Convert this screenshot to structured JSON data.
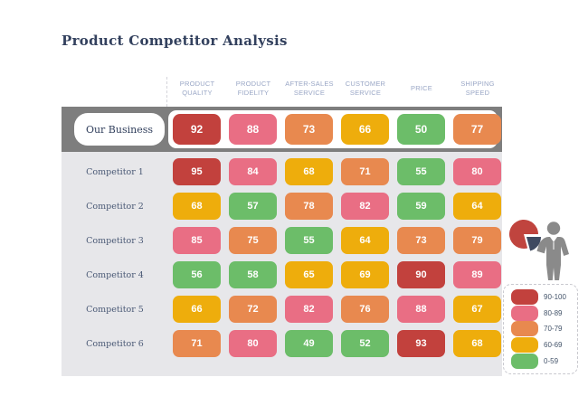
{
  "title": "Product Competitor Analysis",
  "our_business_label": "Our Business",
  "chart_data": {
    "type": "heatmap",
    "title": "Product Competitor Analysis",
    "categories": [
      "PRODUCT QUALITY",
      "PRODUCT FIDELITY",
      "AFTER-SALES SERVICE",
      "CUSTOMER SERVICE",
      "PRICE",
      "SHIPPING SPEED"
    ],
    "rows": [
      {
        "label": "Our Business",
        "highlighted": true,
        "values": [
          92,
          88,
          73,
          66,
          50,
          77
        ]
      },
      {
        "label": "Competitor 1",
        "highlighted": false,
        "values": [
          95,
          84,
          68,
          71,
          55,
          80
        ]
      },
      {
        "label": "Competitor 2",
        "highlighted": false,
        "values": [
          68,
          57,
          78,
          82,
          59,
          64
        ]
      },
      {
        "label": "Competitor 3",
        "highlighted": false,
        "values": [
          85,
          75,
          55,
          64,
          73,
          79
        ]
      },
      {
        "label": "Competitor 4",
        "highlighted": false,
        "values": [
          56,
          58,
          65,
          69,
          90,
          89
        ]
      },
      {
        "label": "Competitor 5",
        "highlighted": false,
        "values": [
          66,
          72,
          82,
          76,
          88,
          67
        ]
      },
      {
        "label": "Competitor 6",
        "highlighted": false,
        "values": [
          71,
          80,
          49,
          52,
          93,
          68
        ]
      }
    ],
    "legend": [
      {
        "label": "90-100",
        "min": 90,
        "max": 100,
        "color": "#c2413d"
      },
      {
        "label": "80-89",
        "min": 80,
        "max": 89,
        "color": "#e96e84"
      },
      {
        "label": "70-79",
        "min": 70,
        "max": 79,
        "color": "#e8894f"
      },
      {
        "label": "60-69",
        "min": 60,
        "max": 69,
        "color": "#eead0c"
      },
      {
        "label": "0-59",
        "min": 0,
        "max": 59,
        "color": "#6cbd69"
      }
    ],
    "legend_position": "bottom-right"
  },
  "icons": {
    "figure": "businessman-holding-pie-chart",
    "figure_colors": {
      "pie_main": "#c0443e",
      "pie_slice": "#3f4a61",
      "person": "#8a8a8a"
    }
  },
  "colors": {
    "highlight_band": "#7e7e7e",
    "rows_background": "#e7e7ea",
    "header_text": "#9aa7c6",
    "label_text": "#4b5a76",
    "title_text": "#33415e"
  }
}
